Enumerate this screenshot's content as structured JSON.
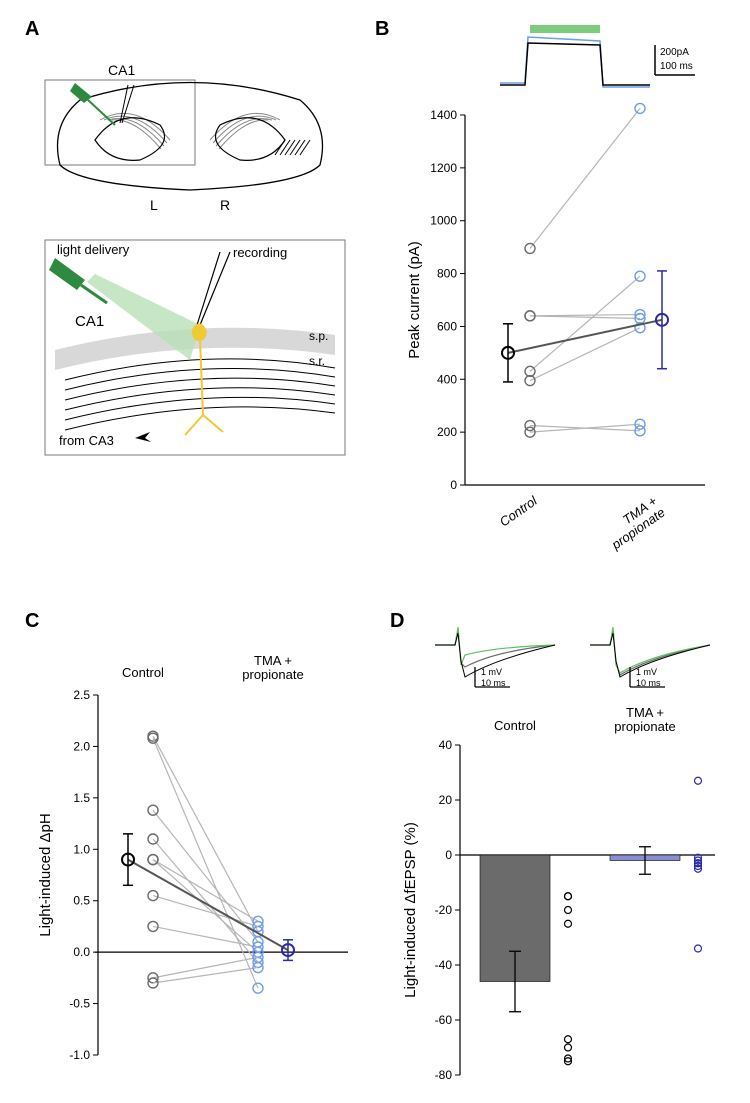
{
  "panels": {
    "A": "A",
    "B": "B",
    "C": "C",
    "D": "D"
  },
  "panelA": {
    "labels": {
      "CA1_top": "CA1",
      "L": "L",
      "R": "R",
      "light": "light delivery",
      "recording": "recording",
      "CA1": "CA1",
      "fromCA3": "from CA3",
      "sp": "s.p.",
      "sr": "s.r."
    },
    "colors": {
      "fiber": "#2d8a3e",
      "light_cone": "#b8e0b8",
      "cell": "#f0c935",
      "box_stroke": "#7a7a7a"
    }
  },
  "panelB": {
    "ylabel": "Peak current (pA)",
    "categories": [
      "Control",
      "TMA + propionate"
    ],
    "ylim": [
      0,
      1400
    ],
    "ytick_step": 200,
    "colors": {
      "control_pt": "#6b6b6b",
      "tma_pt": "#6f9ce8",
      "mean_control": "#000000",
      "mean_tma": "#2a2aa5",
      "pair_line": "#b5b5b5",
      "light_bar": "#7dcb7d"
    },
    "pairs": [
      [
        225,
        205
      ],
      [
        200,
        230
      ],
      [
        395,
        595
      ],
      [
        430,
        790
      ],
      [
        640,
        645
      ],
      [
        640,
        630
      ],
      [
        895,
        1425
      ]
    ],
    "means": {
      "control": 500,
      "tma": 625
    },
    "errs": {
      "control": 110,
      "tma": 185
    },
    "trace_scale": {
      "v": "200pA",
      "h": "100 ms"
    },
    "trace_colors": {
      "a": "#000000",
      "b": "#6f9ce8"
    }
  },
  "panelC": {
    "ylabel": "Light-induced ΔpH",
    "headers": {
      "left": "Control",
      "right": "TMA + propionate"
    },
    "ylim": [
      -1.0,
      2.5
    ],
    "ytick_step": 0.5,
    "colors": {
      "control_pt": "#6b6b6b",
      "tma_pt": "#6f9ce8",
      "mean_control": "#000000",
      "mean_tma": "#2a2aa5",
      "pair_line": "#b5b5b5"
    },
    "pairs": [
      [
        2.1,
        0.2
      ],
      [
        2.08,
        -0.35
      ],
      [
        1.38,
        0.1
      ],
      [
        1.1,
        -0.1
      ],
      [
        0.9,
        0.0
      ],
      [
        0.9,
        0.3
      ],
      [
        0.55,
        0.25
      ],
      [
        0.25,
        0.05
      ],
      [
        -0.25,
        -0.05
      ],
      [
        -0.3,
        -0.15
      ]
    ],
    "means": {
      "control": 0.9,
      "tma": 0.02
    },
    "errs": {
      "control": 0.25,
      "tma": 0.1
    }
  },
  "panelD": {
    "ylabel": "Light-induced ΔfEPSP (%)",
    "headers": {
      "left": "Control",
      "right": "TMA + propionate"
    },
    "ylim": [
      -80,
      40
    ],
    "ytick_step": 20,
    "colors": {
      "bar_control": "#6b6b6b",
      "bar_tma": "#8a8ed1",
      "pts_control": "#000000",
      "pts_tma": "#2a2aa5",
      "err": "#000000"
    },
    "bar_means": {
      "control": -46,
      "tma": -2
    },
    "bar_errs": {
      "control": 11,
      "tma": 5
    },
    "scatter_control": [
      -15,
      -15,
      -20,
      -25,
      -67,
      -70,
      -74,
      -75
    ],
    "scatter_tma": [
      27,
      -1,
      -2,
      -3,
      -3,
      -4,
      -5,
      -34
    ],
    "trace_scale": {
      "v": "1 mV",
      "h": "10 ms"
    },
    "trace_colors": {
      "green": "#5fbf5f",
      "gray": "#6b6b6b",
      "black": "#000000"
    }
  }
}
